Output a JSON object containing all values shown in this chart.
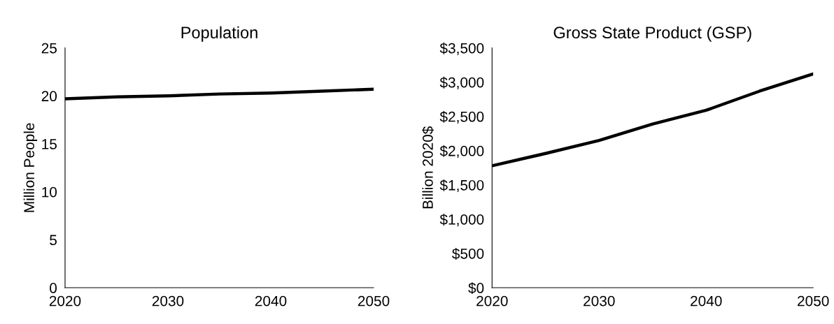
{
  "chart_data": [
    {
      "type": "line",
      "title": "Population",
      "ylabel": "Million People",
      "x": [
        2020,
        2025,
        2030,
        2035,
        2040,
        2045,
        2050
      ],
      "series": [
        {
          "color": "#000000",
          "values": [
            19.7,
            19.9,
            20.0,
            20.2,
            20.3,
            20.5,
            20.7
          ]
        }
      ],
      "xlim": [
        2020,
        2050
      ],
      "xticks": [
        2020,
        2030,
        2040,
        2050
      ],
      "ylim": [
        0,
        25
      ],
      "yticks": [
        0,
        5,
        10,
        15,
        20,
        25
      ],
      "grid": false,
      "legend": false
    },
    {
      "type": "line",
      "title": "Gross State Product (GSP)",
      "ylabel": "Billion 2020$",
      "x": [
        2020,
        2025,
        2030,
        2035,
        2040,
        2045,
        2050
      ],
      "series": [
        {
          "color": "#000000",
          "values": [
            1780,
            1960,
            2150,
            2390,
            2590,
            2870,
            3120
          ]
        }
      ],
      "xlim": [
        2020,
        2050
      ],
      "xticks": [
        2020,
        2030,
        2040,
        2050
      ],
      "ylim": [
        0,
        3500
      ],
      "yticks": [
        {
          "value": 0,
          "label": "$0"
        },
        {
          "value": 500,
          "label": "$500"
        },
        {
          "value": 1000,
          "label": "$1,000"
        },
        {
          "value": 1500,
          "label": "$1,500"
        },
        {
          "value": 2000,
          "label": "$2,000"
        },
        {
          "value": 2500,
          "label": "$2,500"
        },
        {
          "value": 3000,
          "label": "$3,000"
        },
        {
          "value": 3500,
          "label": "$3,500"
        }
      ],
      "grid": false,
      "legend": false
    }
  ]
}
